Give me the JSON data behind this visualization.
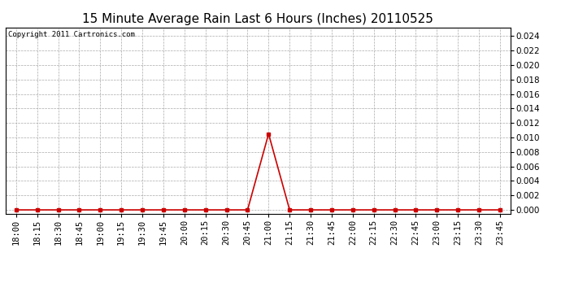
{
  "title": "15 Minute Average Rain Last 6 Hours (Inches) 20110525",
  "copyright": "Copyright 2011 Cartronics.com",
  "line_color": "#cc0000",
  "background_color": "#ffffff",
  "grid_color": "#aaaaaa",
  "ylim": [
    -0.0005,
    0.0252
  ],
  "yticks": [
    0.0,
    0.002,
    0.004,
    0.006,
    0.008,
    0.01,
    0.012,
    0.014,
    0.016,
    0.018,
    0.02,
    0.022,
    0.024
  ],
  "x_labels": [
    "18:00",
    "18:15",
    "18:30",
    "18:45",
    "19:00",
    "19:15",
    "19:30",
    "19:45",
    "20:00",
    "20:15",
    "20:30",
    "20:45",
    "21:00",
    "21:15",
    "21:30",
    "21:45",
    "22:00",
    "22:15",
    "22:30",
    "22:45",
    "23:00",
    "23:15",
    "23:30",
    "23:45"
  ],
  "values": [
    0.0,
    0.0,
    0.0,
    0.0,
    0.0,
    0.0,
    0.0,
    0.0,
    0.0,
    0.0,
    0.0,
    0.0,
    0.0105,
    0.0,
    0.0,
    0.0,
    0.0,
    0.0,
    0.0,
    0.0,
    0.0,
    0.0,
    0.0,
    0.0
  ],
  "title_fontsize": 11,
  "copyright_fontsize": 6.5,
  "tick_fontsize": 7.5,
  "marker": "s",
  "marker_size": 3,
  "line_width": 1.2
}
